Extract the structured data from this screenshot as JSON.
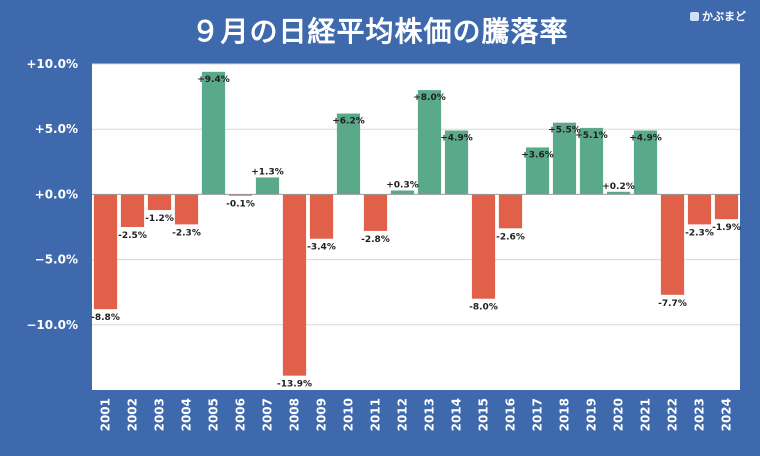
{
  "title": "９月の日経平均株価の騰落率",
  "brand": "かぶまど",
  "colors": {
    "background": "#3f69ad",
    "plot_bg": "#ffffff",
    "positive": "#5aa98a",
    "negative": "#e0604a",
    "grid": "#d9d9d9",
    "zero_line": "#9a9a9a"
  },
  "chart_data": {
    "type": "bar",
    "title": "９月の日経平均株価の騰落率",
    "categories": [
      "2001",
      "2002",
      "2003",
      "2004",
      "2005",
      "2006",
      "2007",
      "2008",
      "2009",
      "2010",
      "2011",
      "2012",
      "2013",
      "2014",
      "2015",
      "2016",
      "2017",
      "2018",
      "2019",
      "2020",
      "2021",
      "2022",
      "2023",
      "2024"
    ],
    "values": [
      -8.8,
      -2.5,
      -1.2,
      -2.3,
      9.4,
      -0.1,
      1.3,
      -13.9,
      -3.4,
      6.2,
      -2.8,
      0.3,
      8.0,
      4.9,
      -8.0,
      -2.6,
      3.6,
      5.5,
      5.1,
      0.2,
      4.9,
      -7.7,
      -2.3,
      -1.9
    ],
    "data_labels": [
      "-8.8%",
      "-2.5%",
      "-1.2%",
      "-2.3%",
      "+9.4%",
      "-0.1%",
      "+1.3%",
      "-13.9%",
      "-3.4%",
      "+6.2%",
      "-2.8%",
      "+0.3%",
      "+8.0%",
      "+4.9%",
      "-8.0%",
      "-2.6%",
      "+3.6%",
      "+5.5%",
      "+5.1%",
      "+0.2%",
      "+4.9%",
      "-7.7%",
      "-2.3%",
      "-1.9%"
    ],
    "ylim": [
      -15,
      10
    ],
    "yticks": [
      10,
      5,
      0,
      -5,
      -10
    ],
    "ytick_labels": [
      "+10.0%",
      "+5.0%",
      "+0.0%",
      "−5.0%",
      "−10.0%"
    ],
    "xlabel": "",
    "ylabel": "",
    "grid": true
  }
}
